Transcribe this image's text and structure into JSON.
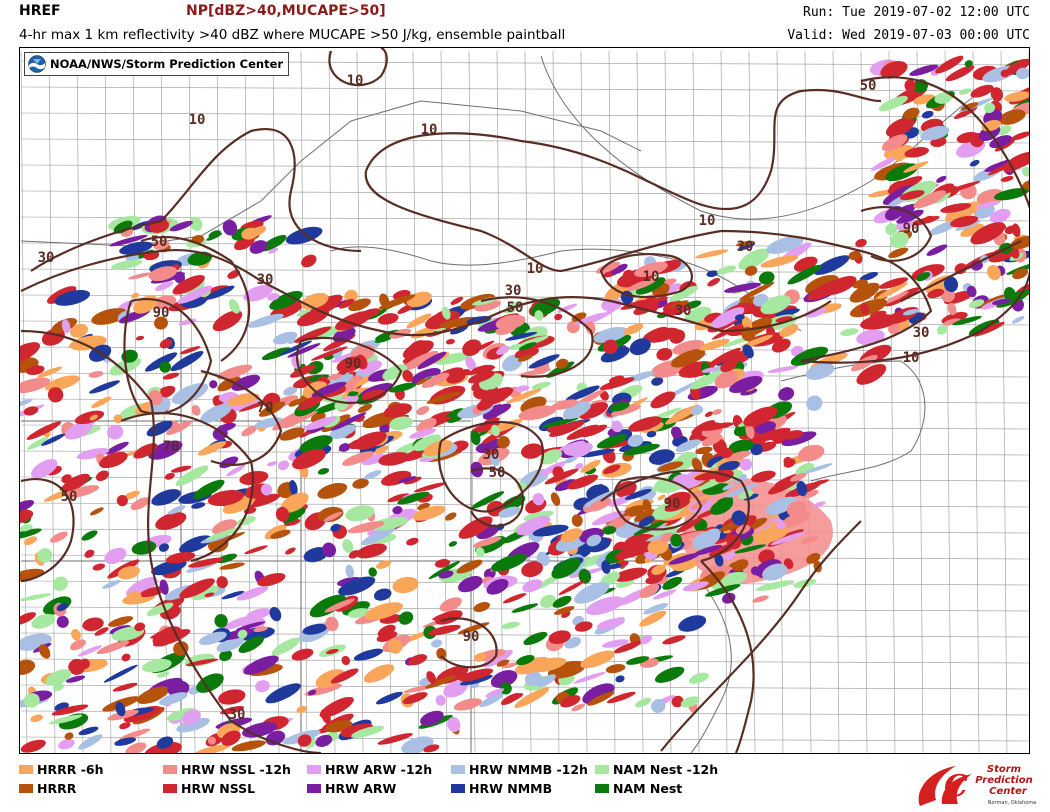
{
  "header": {
    "product": "HREF",
    "field": "NP[dBZ>40,MUCAPE>50]",
    "description": "4-hr max 1 km reflectivity >40 dBZ where MUCAPE >50 J/kg, ensemble paintball",
    "run": "Run: Tue 2019-07-02 12:00 UTC",
    "valid": "Valid: Wed 2019-07-03 00:00 UTC"
  },
  "badge": {
    "text": "NOAA/NWS/Storm Prediction Center",
    "icon": "noaa-logo-icon"
  },
  "colors": {
    "hrrr_6h": "#f9a65a",
    "hrrr": "#b5520c",
    "hrw_nssl_12h": "#f38b8b",
    "hrw_nssl": "#d0262f",
    "hrw_arw_12h": "#e29ef0",
    "hrw_arw": "#7a1ea1",
    "hrw_nmmb_12h": "#a9bfe3",
    "hrw_nmmb": "#1f3a9c",
    "nam_nest_12h": "#a6e8a0",
    "nam_nest": "#0a7a0a",
    "contour": "#5a2d24"
  },
  "legend": {
    "row1": [
      "HRRR -6h",
      "HRW NSSL -12h",
      "HRW ARW -12h",
      "HRW NMMB -12h",
      "NAM Nest -12h"
    ],
    "row2": [
      "HRRR",
      "HRW NSSL",
      "HRW ARW",
      "HRW NMMB",
      "NAM Nest"
    ]
  },
  "contour_labels": [
    "10",
    "10",
    "10",
    "10",
    "10",
    "10",
    "10",
    "30",
    "30",
    "30",
    "30",
    "30",
    "30",
    "30",
    "30",
    "50",
    "50",
    "50",
    "50",
    "50",
    "70",
    "70",
    "90",
    "90",
    "90",
    "90",
    "90"
  ],
  "spc_logo": {
    "line1": "Storm",
    "line2": "Prediction",
    "line3": "Center",
    "line4": "Norman, Oklahoma"
  }
}
